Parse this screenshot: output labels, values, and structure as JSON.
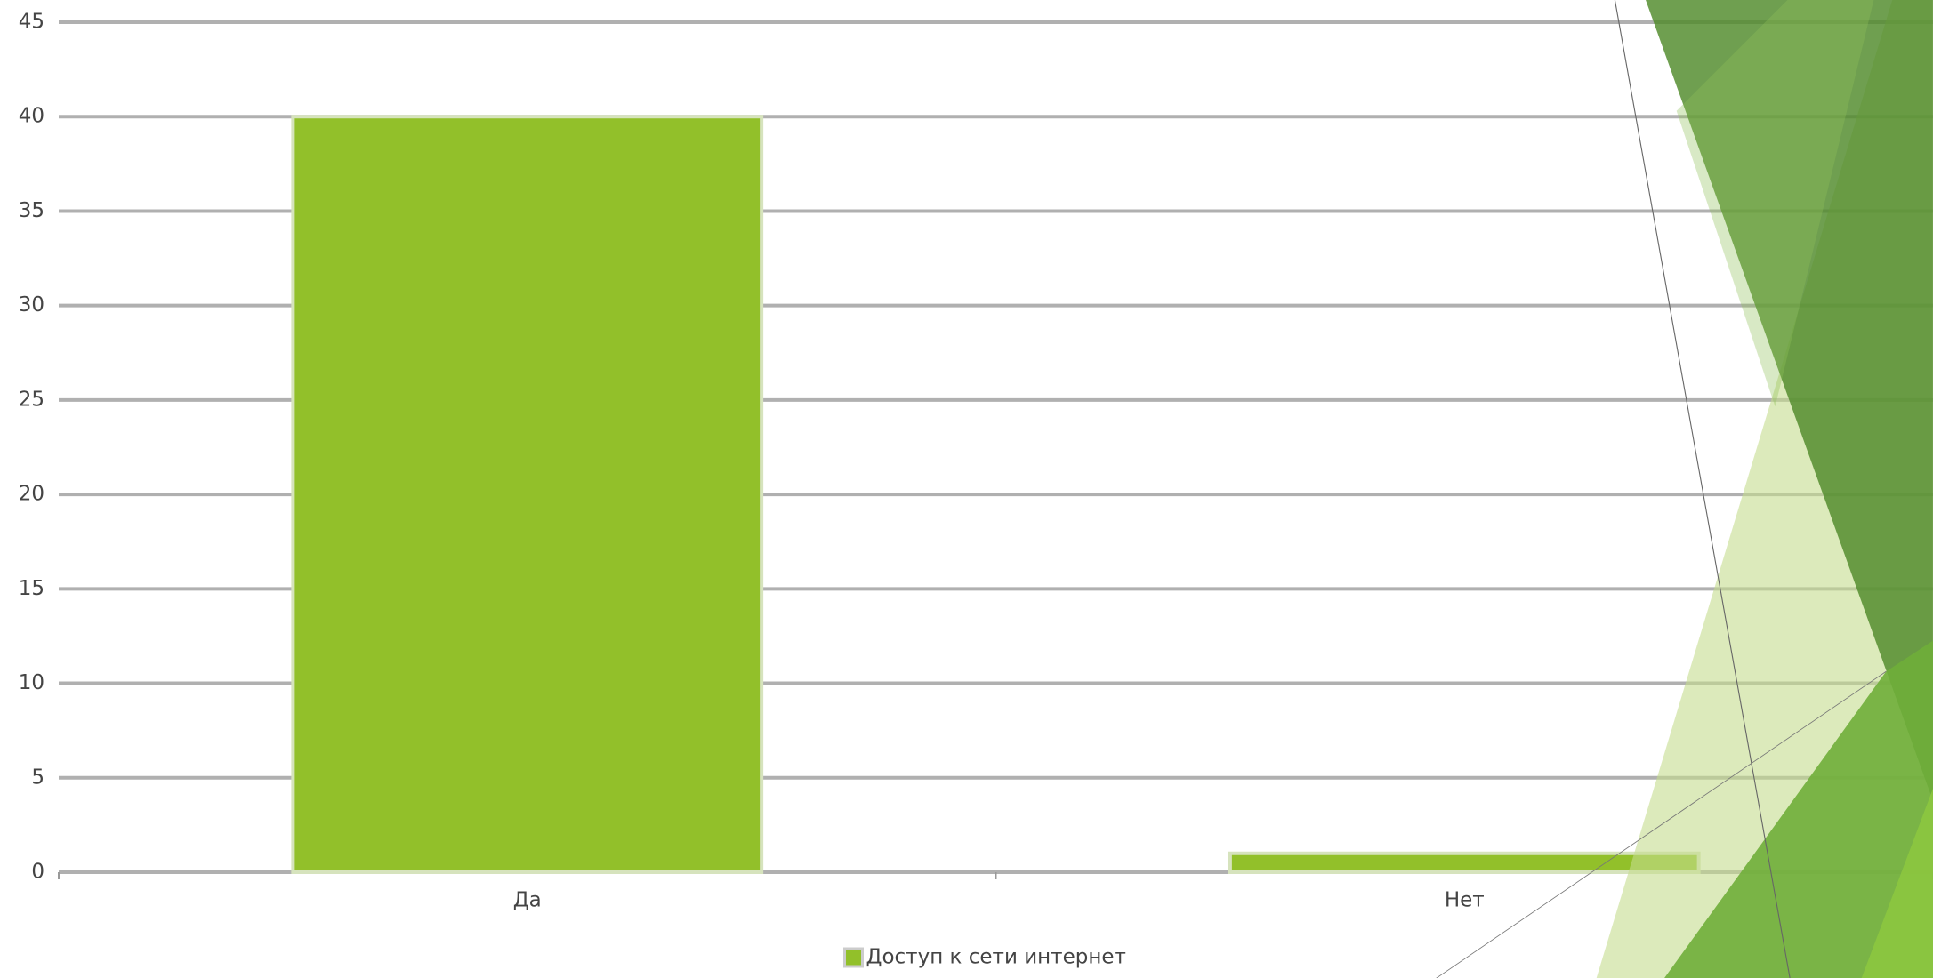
{
  "chart_data": {
    "type": "bar",
    "categories": [
      "Да",
      "Нет"
    ],
    "series": [
      {
        "name": "Доступ к сети интернет",
        "color": "#92c02a",
        "values": [
          40,
          1
        ]
      }
    ],
    "ylim": [
      0,
      45
    ],
    "yticks": [
      0,
      5,
      10,
      15,
      20,
      25,
      30,
      35,
      40,
      45
    ],
    "grid": true,
    "legend": "bottom"
  }
}
